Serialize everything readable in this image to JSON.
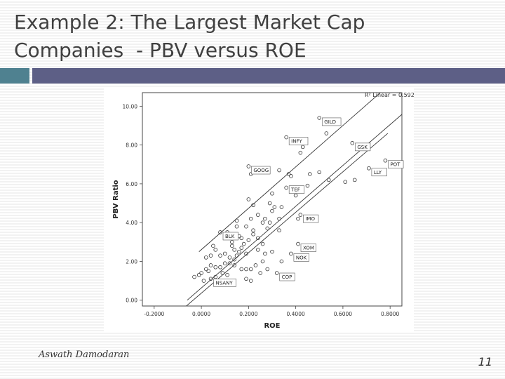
{
  "slide": {
    "title_line1": "Example 2: The Largest Market Cap",
    "title_line2": "Companies  - PBV versus ROE",
    "author": "Aswath Damodaran",
    "page_number": "11"
  },
  "colors": {
    "accent_left": "#4f8190",
    "accent_right": "#5d5f86"
  },
  "chart_data": {
    "type": "scatter",
    "title": "",
    "xlabel": "ROE",
    "ylabel": "PBV Ratio",
    "xlim": [
      -0.25,
      0.85
    ],
    "ylim": [
      -0.3,
      10.7
    ],
    "xticks": [
      -0.2,
      0,
      0.2,
      0.4,
      0.6,
      0.8
    ],
    "xtick_labels": [
      "-0.2000",
      "0.0000",
      "0.2000",
      "0.4000",
      "0.6000",
      "0.8000"
    ],
    "yticks": [
      0,
      2,
      4,
      6,
      8,
      10
    ],
    "ytick_labels": [
      "0.00",
      "2.00",
      "4.00",
      "6.00",
      "8.00",
      "10.00"
    ],
    "legend": "R² Linear = 0.592",
    "grid": false,
    "fit_lines": [
      {
        "x": [
          -0.06,
          0.89
        ],
        "y": [
          0.0,
          10.0
        ]
      },
      {
        "x": [
          -0.01,
          0.89
        ],
        "y": [
          2.5,
          12.1
        ]
      },
      {
        "x": [
          -0.15,
          0.79
        ],
        "y": [
          -1.2,
          8.6
        ]
      }
    ],
    "labeled_points": [
      {
        "label": "GILD",
        "x": 0.5,
        "y": 9.4
      },
      {
        "label": "INFY",
        "x": 0.36,
        "y": 8.4
      },
      {
        "label": "GSK",
        "x": 0.64,
        "y": 8.1
      },
      {
        "label": "POT",
        "x": 0.78,
        "y": 7.2
      },
      {
        "label": "LLY",
        "x": 0.71,
        "y": 6.8
      },
      {
        "label": "GOOG",
        "x": 0.2,
        "y": 6.9
      },
      {
        "label": "TEF",
        "x": 0.36,
        "y": 5.9
      },
      {
        "label": "IMO",
        "x": 0.42,
        "y": 4.4
      },
      {
        "label": "BLK",
        "x": 0.08,
        "y": 3.5
      },
      {
        "label": "XOM",
        "x": 0.41,
        "y": 2.9
      },
      {
        "label": "NOK",
        "x": 0.38,
        "y": 2.4
      },
      {
        "label": "COP",
        "x": 0.32,
        "y": 1.4
      },
      {
        "label": "NSANY",
        "x": 0.04,
        "y": 1.1
      }
    ],
    "points": [
      [
        0.5,
        9.4
      ],
      [
        0.36,
        8.4
      ],
      [
        0.64,
        8.1
      ],
      [
        0.78,
        7.2
      ],
      [
        0.71,
        6.8
      ],
      [
        0.2,
        6.9
      ],
      [
        0.42,
        4.4
      ],
      [
        0.08,
        3.5
      ],
      [
        0.41,
        2.9
      ],
      [
        0.38,
        2.4
      ],
      [
        0.32,
        1.4
      ],
      [
        0.04,
        1.1
      ],
      [
        0.53,
        8.6
      ],
      [
        0.43,
        7.9
      ],
      [
        0.42,
        7.6
      ],
      [
        0.37,
        6.5
      ],
      [
        0.38,
        6.4
      ],
      [
        0.33,
        6.7
      ],
      [
        0.46,
        6.5
      ],
      [
        0.5,
        6.6
      ],
      [
        0.54,
        6.2
      ],
      [
        0.61,
        6.1
      ],
      [
        0.65,
        6.2
      ],
      [
        0.21,
        6.5
      ],
      [
        0.3,
        5.5
      ],
      [
        0.36,
        5.8
      ],
      [
        0.45,
        5.9
      ],
      [
        0.4,
        5.4
      ],
      [
        0.29,
        5.0
      ],
      [
        0.31,
        4.8
      ],
      [
        0.2,
        5.2
      ],
      [
        0.22,
        4.9
      ],
      [
        0.34,
        4.8
      ],
      [
        0.3,
        4.6
      ],
      [
        0.24,
        4.4
      ],
      [
        0.27,
        4.2
      ],
      [
        0.33,
        4.2
      ],
      [
        0.41,
        4.2
      ],
      [
        0.46,
        4.3
      ],
      [
        0.21,
        4.2
      ],
      [
        0.26,
        4.0
      ],
      [
        0.29,
        4.0
      ],
      [
        0.15,
        3.8
      ],
      [
        0.19,
        3.8
      ],
      [
        0.28,
        3.7
      ],
      [
        0.33,
        3.6
      ],
      [
        0.11,
        3.5
      ],
      [
        0.16,
        3.3
      ],
      [
        0.22,
        3.4
      ],
      [
        0.24,
        3.2
      ],
      [
        0.2,
        3.1
      ],
      [
        0.18,
        2.9
      ],
      [
        0.17,
        2.7
      ],
      [
        0.14,
        2.6
      ],
      [
        0.13,
        2.8
      ],
      [
        0.16,
        2.5
      ],
      [
        0.19,
        2.4
      ],
      [
        0.24,
        2.6
      ],
      [
        0.27,
        2.4
      ],
      [
        0.3,
        2.5
      ],
      [
        0.34,
        2.0
      ],
      [
        0.26,
        2.0
      ],
      [
        0.23,
        1.8
      ],
      [
        0.21,
        1.6
      ],
      [
        0.19,
        1.6
      ],
      [
        0.17,
        1.6
      ],
      [
        0.14,
        1.8
      ],
      [
        0.12,
        1.9
      ],
      [
        0.1,
        1.9
      ],
      [
        0.08,
        1.7
      ],
      [
        0.06,
        1.7
      ],
      [
        0.04,
        1.8
      ],
      [
        0.02,
        1.6
      ],
      [
        0.0,
        1.4
      ],
      [
        -0.03,
        1.2
      ],
      [
        0.06,
        1.2
      ],
      [
        0.07,
        1.0
      ],
      [
        0.09,
        1.4
      ],
      [
        0.11,
        1.3
      ],
      [
        0.19,
        1.1
      ],
      [
        0.21,
        1.0
      ],
      [
        0.25,
        1.4
      ],
      [
        0.28,
        1.6
      ],
      [
        0.14,
        2.1
      ],
      [
        0.15,
        2.3
      ],
      [
        0.12,
        2.2
      ],
      [
        0.1,
        2.4
      ],
      [
        0.08,
        2.3
      ],
      [
        0.06,
        2.6
      ],
      [
        0.05,
        2.8
      ],
      [
        0.04,
        2.3
      ],
      [
        0.02,
        2.2
      ],
      [
        0.01,
        1.0
      ],
      [
        -0.01,
        1.3
      ],
      [
        0.03,
        1.5
      ],
      [
        0.13,
        3.0
      ],
      [
        0.17,
        3.2
      ],
      [
        0.26,
        2.9
      ],
      [
        0.22,
        3.6
      ],
      [
        0.15,
        4.1
      ]
    ]
  }
}
